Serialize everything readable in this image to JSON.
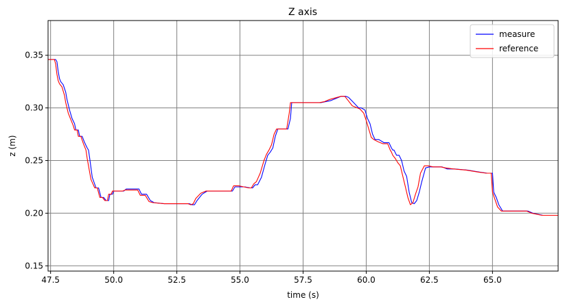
{
  "chart_data": {
    "type": "line",
    "title": "Z axis",
    "xlabel": "time (s)",
    "ylabel": "z (m)",
    "xlim": [
      47.4,
      67.6
    ],
    "ylim": [
      0.145,
      0.383
    ],
    "xticks": [
      47.5,
      50.0,
      52.5,
      55.0,
      57.5,
      60.0,
      62.5,
      65.0
    ],
    "xtick_labels": [
      "47.5",
      "50.0",
      "52.5",
      "55.0",
      "57.5",
      "60.0",
      "62.5",
      "65.0"
    ],
    "yticks": [
      0.15,
      0.2,
      0.25,
      0.3,
      0.35
    ],
    "ytick_labels": [
      "0.15",
      "0.20",
      "0.25",
      "0.30",
      "0.35"
    ],
    "grid": true,
    "legend_position": "top-right",
    "series": [
      {
        "name": "measure",
        "color": "#0000ff",
        "x": [
          47.4,
          47.7,
          47.75,
          47.8,
          47.85,
          47.9,
          48.0,
          48.1,
          48.15,
          48.25,
          48.35,
          48.45,
          48.5,
          48.6,
          48.65,
          48.75,
          48.85,
          48.95,
          49.0,
          49.05,
          49.15,
          49.3,
          49.4,
          49.5,
          49.6,
          49.7,
          49.8,
          49.85,
          49.95,
          50.0,
          50.2,
          50.4,
          50.5,
          50.6,
          51.0,
          51.1,
          51.3,
          51.45,
          51.6,
          52.0,
          52.5,
          53.0,
          53.1,
          53.2,
          53.3,
          53.5,
          53.7,
          54.0,
          54.5,
          54.7,
          54.8,
          55.0,
          55.2,
          55.4,
          55.5,
          55.6,
          55.7,
          55.85,
          56.0,
          56.1,
          56.2,
          56.3,
          56.4,
          56.5,
          56.55,
          56.9,
          57.0,
          57.05,
          57.5,
          58.0,
          58.2,
          58.4,
          58.6,
          59.0,
          59.1,
          59.2,
          59.3,
          59.5,
          59.7,
          59.8,
          59.95,
          60.05,
          60.15,
          60.25,
          60.35,
          60.5,
          60.7,
          60.9,
          61.0,
          61.05,
          61.1,
          61.2,
          61.3,
          61.4,
          61.5,
          61.6,
          61.7,
          61.8,
          61.9,
          62.0,
          62.1,
          62.2,
          62.35,
          62.5,
          62.7,
          63.0,
          63.2,
          63.5,
          64.0,
          64.5,
          64.8,
          65.0,
          65.05,
          65.15,
          65.25,
          65.4,
          66.0,
          66.4,
          66.6,
          67.0,
          67.6
        ],
        "y": [
          0.346,
          0.346,
          0.344,
          0.335,
          0.328,
          0.325,
          0.322,
          0.315,
          0.308,
          0.298,
          0.29,
          0.285,
          0.279,
          0.279,
          0.273,
          0.273,
          0.267,
          0.262,
          0.26,
          0.252,
          0.234,
          0.224,
          0.224,
          0.215,
          0.215,
          0.212,
          0.212,
          0.218,
          0.218,
          0.221,
          0.221,
          0.221,
          0.223,
          0.223,
          0.223,
          0.218,
          0.218,
          0.212,
          0.21,
          0.209,
          0.209,
          0.209,
          0.208,
          0.208,
          0.212,
          0.218,
          0.221,
          0.221,
          0.221,
          0.221,
          0.225,
          0.225,
          0.225,
          0.224,
          0.224,
          0.227,
          0.227,
          0.234,
          0.247,
          0.255,
          0.258,
          0.262,
          0.273,
          0.28,
          0.28,
          0.28,
          0.29,
          0.305,
          0.305,
          0.305,
          0.305,
          0.306,
          0.307,
          0.311,
          0.311,
          0.311,
          0.31,
          0.305,
          0.3,
          0.3,
          0.298,
          0.29,
          0.285,
          0.275,
          0.27,
          0.27,
          0.267,
          0.267,
          0.262,
          0.26,
          0.26,
          0.255,
          0.255,
          0.25,
          0.24,
          0.235,
          0.22,
          0.21,
          0.209,
          0.212,
          0.22,
          0.23,
          0.243,
          0.244,
          0.244,
          0.244,
          0.242,
          0.242,
          0.241,
          0.239,
          0.238,
          0.238,
          0.22,
          0.215,
          0.208,
          0.202,
          0.202,
          0.202,
          0.2,
          0.198,
          0.198
        ]
      },
      {
        "name": "reference",
        "color": "#ff0000",
        "x": [
          47.4,
          47.65,
          47.7,
          47.75,
          47.8,
          47.85,
          47.95,
          48.05,
          48.1,
          48.2,
          48.3,
          48.4,
          48.45,
          48.55,
          48.6,
          48.7,
          48.8,
          48.9,
          48.95,
          49.0,
          49.1,
          49.25,
          49.35,
          49.45,
          49.55,
          49.65,
          49.75,
          49.8,
          49.9,
          49.95,
          50.15,
          50.35,
          50.45,
          50.55,
          50.95,
          51.05,
          51.25,
          51.4,
          51.55,
          52.0,
          52.5,
          52.95,
          53.05,
          53.15,
          53.25,
          53.45,
          53.65,
          54.0,
          54.45,
          54.65,
          54.75,
          54.95,
          55.15,
          55.35,
          55.45,
          55.55,
          55.65,
          55.8,
          55.95,
          56.05,
          56.15,
          56.25,
          56.35,
          56.45,
          56.5,
          56.85,
          56.95,
          57.0,
          57.5,
          58.0,
          58.15,
          58.35,
          58.55,
          59.0,
          59.05,
          59.15,
          59.25,
          59.45,
          59.65,
          59.75,
          59.9,
          60.0,
          60.1,
          60.2,
          60.3,
          60.45,
          60.65,
          60.85,
          60.95,
          61.0,
          61.05,
          61.15,
          61.25,
          61.35,
          61.45,
          61.55,
          61.65,
          61.75,
          61.85,
          61.95,
          62.05,
          62.15,
          62.3,
          62.45,
          62.65,
          62.95,
          63.15,
          63.45,
          63.95,
          64.45,
          64.75,
          64.95,
          65.0,
          65.1,
          65.2,
          65.35,
          65.95,
          66.35,
          66.55,
          66.95,
          67.6
        ],
        "y": [
          0.346,
          0.346,
          0.342,
          0.332,
          0.326,
          0.323,
          0.32,
          0.312,
          0.305,
          0.295,
          0.289,
          0.283,
          0.279,
          0.279,
          0.273,
          0.273,
          0.266,
          0.26,
          0.252,
          0.245,
          0.232,
          0.224,
          0.224,
          0.215,
          0.215,
          0.212,
          0.212,
          0.218,
          0.218,
          0.221,
          0.221,
          0.221,
          0.222,
          0.222,
          0.222,
          0.217,
          0.217,
          0.211,
          0.21,
          0.209,
          0.209,
          0.209,
          0.208,
          0.209,
          0.214,
          0.219,
          0.221,
          0.221,
          0.221,
          0.221,
          0.226,
          0.226,
          0.225,
          0.224,
          0.224,
          0.228,
          0.23,
          0.238,
          0.25,
          0.256,
          0.26,
          0.265,
          0.275,
          0.28,
          0.28,
          0.28,
          0.295,
          0.305,
          0.305,
          0.305,
          0.305,
          0.306,
          0.308,
          0.311,
          0.311,
          0.311,
          0.308,
          0.302,
          0.3,
          0.299,
          0.295,
          0.288,
          0.28,
          0.272,
          0.27,
          0.268,
          0.266,
          0.266,
          0.26,
          0.258,
          0.255,
          0.252,
          0.248,
          0.245,
          0.235,
          0.225,
          0.215,
          0.208,
          0.21,
          0.218,
          0.225,
          0.238,
          0.245,
          0.245,
          0.244,
          0.244,
          0.243,
          0.242,
          0.241,
          0.239,
          0.238,
          0.238,
          0.22,
          0.213,
          0.206,
          0.202,
          0.202,
          0.202,
          0.2,
          0.198,
          0.198
        ]
      }
    ]
  }
}
